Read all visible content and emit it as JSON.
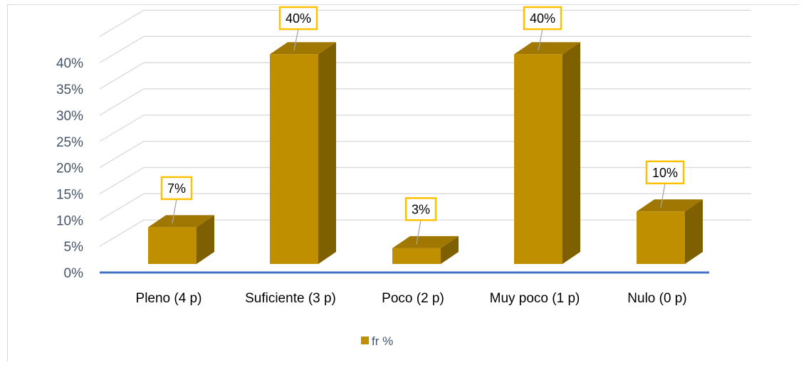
{
  "chart_data": {
    "type": "bar",
    "title": "",
    "xlabel": "",
    "ylabel": "",
    "categories": [
      "Pleno (4 p)",
      "Suficiente (3 p)",
      "Poco (2 p)",
      "Muy poco (1 p)",
      "Nulo (0 p)"
    ],
    "series": [
      {
        "name": "fr %",
        "values": [
          7,
          40,
          3,
          40,
          10
        ]
      }
    ],
    "data_labels": [
      "7%",
      "40%",
      "3%",
      "40%",
      "10%"
    ],
    "y_ticks": [
      "0%",
      "5%",
      "10%",
      "15%",
      "20%",
      "25%",
      "30%",
      "35%",
      "40%"
    ],
    "ylim": [
      0,
      45
    ],
    "grid": true,
    "legend_position": "bottom",
    "style": "3d-column",
    "colors": {
      "bar_front": "#bf8f00",
      "bar_top": "#a07700",
      "bar_side": "#7f6000",
      "label_border": "#ffc000",
      "axis_line": "#4472c4",
      "gridline": "#d9d9d9",
      "tick_text": "#44546a"
    }
  }
}
